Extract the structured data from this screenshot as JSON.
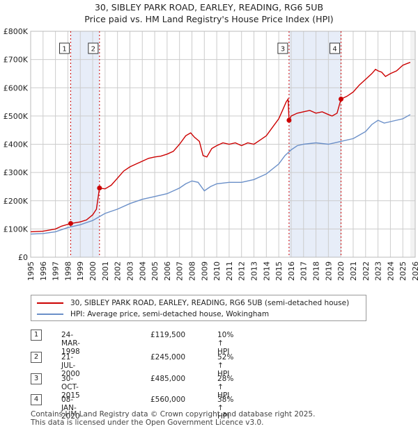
{
  "header": {
    "title_line1": "30, SIBLEY PARK ROAD, EARLEY, READING, RG6 5UB",
    "title_line2": "Price paid vs. HM Land Registry's House Price Index (HPI)"
  },
  "colors": {
    "property": "#cc0000",
    "hpi": "#6a8fc8",
    "band": "#dde6f5",
    "grid": "#cccccc"
  },
  "chart_data": {
    "type": "line",
    "title": "Price paid vs. HM Land Registry's House Price Index (HPI)",
    "xlim": [
      1995,
      2026
    ],
    "ylim": [
      0,
      800000
    ],
    "x_ticks": [
      1995,
      1996,
      1997,
      1998,
      1999,
      2000,
      2001,
      2002,
      2003,
      2004,
      2005,
      2006,
      2007,
      2008,
      2009,
      2010,
      2011,
      2012,
      2013,
      2014,
      2015,
      2016,
      2017,
      2018,
      2019,
      2020,
      2021,
      2022,
      2023,
      2024,
      2025,
      2026
    ],
    "x_tick_labels": [
      "1995",
      "1996",
      "1997",
      "1998",
      "1999",
      "2000",
      "2001",
      "2002",
      "2003",
      "2004",
      "2005",
      "2006",
      "2007",
      "2008",
      "2009",
      "2010",
      "2011",
      "2012",
      "2013",
      "2014",
      "2015",
      "2016",
      "2017",
      "2018",
      "2019",
      "2020",
      "2021",
      "2022",
      "2023",
      "2024",
      "2025",
      "2026"
    ],
    "y_ticks": [
      0,
      100000,
      200000,
      300000,
      400000,
      500000,
      600000,
      700000,
      800000
    ],
    "y_tick_labels": [
      "£0",
      "£100K",
      "£200K",
      "£300K",
      "£400K",
      "£500K",
      "£600K",
      "£700K",
      "£800K"
    ],
    "shaded_ranges": [
      [
        1998.23,
        2000.55
      ],
      [
        2015.83,
        2020.02
      ]
    ],
    "series": [
      {
        "name": "30, SIBLEY PARK ROAD, EARLEY, READING, RG6 5UB (semi-detached house)",
        "color": "#cc0000",
        "x": [
          1995,
          1996,
          1997,
          1997.5,
          1998.23,
          1999,
          1999.5,
          2000,
          2000.3,
          2000.55,
          2001,
          2001.5,
          2002,
          2002.5,
          2003,
          2003.5,
          2004,
          2004.5,
          2005,
          2005.5,
          2006,
          2006.5,
          2007,
          2007.5,
          2007.9,
          2008.2,
          2008.6,
          2008.9,
          2009.2,
          2009.6,
          2010,
          2010.5,
          2011,
          2011.5,
          2012,
          2012.5,
          2013,
          2013.5,
          2014,
          2014.5,
          2015,
          2015.3,
          2015.6,
          2015.75,
          2015.83,
          2016,
          2016.5,
          2017,
          2017.5,
          2018,
          2018.5,
          2019,
          2019.3,
          2019.7,
          2020.02,
          2020.5,
          2021,
          2021.5,
          2022,
          2022.5,
          2022.8,
          2023,
          2023.3,
          2023.6,
          2024,
          2024.5,
          2025,
          2025.3,
          2025.6
        ],
        "y": [
          90000,
          92000,
          100000,
          110000,
          119500,
          125000,
          132000,
          150000,
          170000,
          245000,
          242000,
          255000,
          280000,
          305000,
          320000,
          330000,
          340000,
          350000,
          355000,
          358000,
          365000,
          375000,
          400000,
          430000,
          440000,
          425000,
          410000,
          360000,
          355000,
          385000,
          395000,
          405000,
          400000,
          405000,
          395000,
          405000,
          400000,
          415000,
          430000,
          460000,
          490000,
          520000,
          550000,
          560000,
          485000,
          500000,
          510000,
          515000,
          520000,
          510000,
          515000,
          505000,
          500000,
          510000,
          560000,
          570000,
          585000,
          610000,
          630000,
          650000,
          665000,
          660000,
          655000,
          640000,
          650000,
          660000,
          680000,
          685000,
          690000
        ]
      },
      {
        "name": "HPI: Average price, semi-detached house, Wokingham",
        "color": "#6a8fc8",
        "x": [
          1995,
          1996,
          1997,
          1998,
          1999,
          2000,
          2001,
          2002,
          2003,
          2004,
          2005,
          2006,
          2007,
          2007.5,
          2008,
          2008.5,
          2009,
          2009.5,
          2010,
          2011,
          2012,
          2013,
          2014,
          2015,
          2015.5,
          2016,
          2016.5,
          2017,
          2018,
          2019,
          2020,
          2021,
          2022,
          2022.5,
          2023,
          2023.5,
          2024,
          2025,
          2025.6
        ],
        "y": [
          82000,
          84000,
          90000,
          105000,
          115000,
          130000,
          155000,
          170000,
          190000,
          205000,
          215000,
          225000,
          245000,
          260000,
          270000,
          265000,
          235000,
          250000,
          260000,
          265000,
          265000,
          275000,
          295000,
          330000,
          360000,
          380000,
          395000,
          400000,
          405000,
          400000,
          410000,
          420000,
          445000,
          470000,
          485000,
          475000,
          480000,
          490000,
          505000
        ]
      }
    ],
    "markers": [
      {
        "label": "1",
        "x": 1998.23,
        "y": 119500
      },
      {
        "label": "2",
        "x": 2000.55,
        "y": 245000
      },
      {
        "label": "3",
        "x": 2015.83,
        "y": 485000
      },
      {
        "label": "4",
        "x": 2020.02,
        "y": 560000
      }
    ]
  },
  "legend": {
    "property_label": "30, SIBLEY PARK ROAD, EARLEY, READING, RG6 5UB (semi-detached house)",
    "hpi_label": "HPI: Average price, semi-detached house, Wokingham"
  },
  "transactions": [
    {
      "num": "1",
      "date": "24-MAR-1998",
      "price": "£119,500",
      "hpi": "10% ↑ HPI"
    },
    {
      "num": "2",
      "date": "21-JUL-2000",
      "price": "£245,000",
      "hpi": "52% ↑ HPI"
    },
    {
      "num": "3",
      "date": "30-OCT-2015",
      "price": "£485,000",
      "hpi": "28% ↑ HPI"
    },
    {
      "num": "4",
      "date": "08-JAN-2020",
      "price": "£560,000",
      "hpi": "38% ↑ HPI"
    }
  ],
  "footer": {
    "line1": "Contains HM Land Registry data © Crown copyright and database right 2025.",
    "line2": "This data is licensed under the Open Government Licence v3.0."
  }
}
